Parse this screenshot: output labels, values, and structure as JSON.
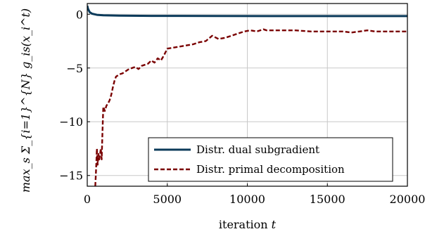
{
  "chart_data": {
    "type": "line",
    "title": "",
    "xlabel": "iteration t",
    "ylabel": "max_s Σ_{i=1}^{N} g_is(x_i^t)",
    "xlim": [
      0,
      20000
    ],
    "ylim": [
      -16,
      1
    ],
    "xticks": [
      0,
      5000,
      10000,
      15000,
      20000
    ],
    "xtick_labels": [
      "0",
      "5000",
      "10000",
      "15000",
      "20000"
    ],
    "yticks": [
      0,
      -5,
      -10,
      -15
    ],
    "ytick_labels": [
      "0",
      "−5",
      "−10",
      "−15"
    ],
    "grid": true,
    "legend_position": "lower-right",
    "series": [
      {
        "name": "Distr. dual subgradient",
        "color": "#0b3a5a",
        "style": "solid",
        "x": [
          0,
          50,
          150,
          300,
          600,
          1000,
          2000,
          4000,
          8000,
          12000,
          16000,
          20000
        ],
        "y": [
          0.8,
          0.5,
          0.2,
          0.05,
          -0.05,
          -0.1,
          -0.13,
          -0.15,
          -0.16,
          -0.17,
          -0.17,
          -0.17
        ]
      },
      {
        "name": "Distr. primal decomposition",
        "color": "#7a0000",
        "style": "dashed",
        "x": [
          500,
          550,
          600,
          650,
          700,
          750,
          800,
          850,
          900,
          950,
          1000,
          1100,
          1200,
          1300,
          1400,
          1500,
          1600,
          1700,
          1800,
          1900,
          2000,
          2200,
          2400,
          2600,
          2800,
          3000,
          3200,
          3400,
          3600,
          3800,
          4000,
          4200,
          4400,
          4600,
          4800,
          5000,
          5400,
          5800,
          6200,
          6600,
          7000,
          7400,
          7800,
          8200,
          8600,
          9000,
          9400,
          9800,
          10200,
          10600,
          11000,
          11200,
          11600,
          12000,
          13000,
          14000,
          15000,
          16000,
          16500,
          17000,
          17500,
          18000,
          19000,
          20000
        ],
        "y": [
          -16,
          -14.5,
          -12.5,
          -14,
          -13,
          -13.5,
          -13,
          -12.5,
          -13.5,
          -11,
          -8.6,
          -9,
          -8.5,
          -8.3,
          -8,
          -7.5,
          -6.8,
          -6.2,
          -5.8,
          -5.7,
          -5.6,
          -5.5,
          -5.3,
          -5.1,
          -5,
          -4.9,
          -5.1,
          -4.8,
          -4.7,
          -4.6,
          -4.3,
          -4.5,
          -4.1,
          -4.3,
          -3.8,
          -3.2,
          -3.1,
          -3,
          -2.9,
          -2.8,
          -2.6,
          -2.5,
          -2,
          -2.3,
          -2.2,
          -2,
          -1.8,
          -1.6,
          -1.5,
          -1.6,
          -1.4,
          -1.5,
          -1.5,
          -1.5,
          -1.5,
          -1.6,
          -1.6,
          -1.6,
          -1.7,
          -1.6,
          -1.5,
          -1.6,
          -1.6,
          -1.6
        ]
      }
    ]
  }
}
